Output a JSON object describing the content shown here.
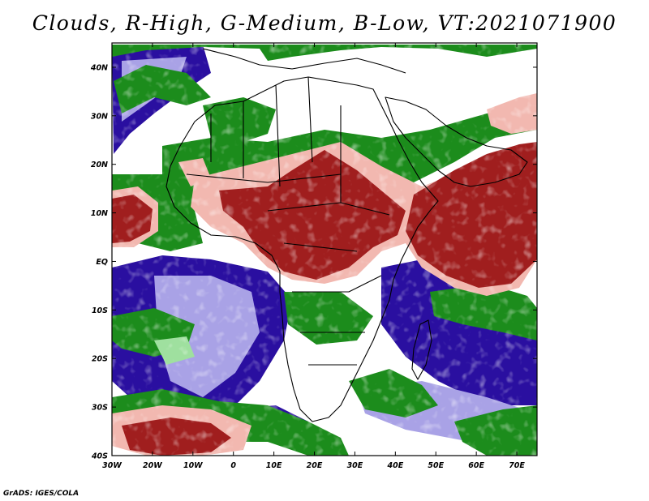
{
  "title": "Clouds, R-High, G-Medium, B-Low, VT:2021071900",
  "credit": "GrADS: IGES/COLA",
  "map": {
    "lon_range": [
      -30,
      75
    ],
    "lat_range": [
      -40,
      45
    ],
    "lon_ticks": [
      {
        "value": -30,
        "label": "30W"
      },
      {
        "value": -20,
        "label": "20W"
      },
      {
        "value": -10,
        "label": "10W"
      },
      {
        "value": 0,
        "label": "0"
      },
      {
        "value": 10,
        "label": "10E"
      },
      {
        "value": 20,
        "label": "20E"
      },
      {
        "value": 30,
        "label": "30E"
      },
      {
        "value": 40,
        "label": "40E"
      },
      {
        "value": 50,
        "label": "50E"
      },
      {
        "value": 60,
        "label": "60E"
      },
      {
        "value": 70,
        "label": "70E"
      }
    ],
    "lat_ticks": [
      {
        "value": 40,
        "label": "40N"
      },
      {
        "value": 30,
        "label": "30N"
      },
      {
        "value": 20,
        "label": "20N"
      },
      {
        "value": 10,
        "label": "10N"
      },
      {
        "value": 0,
        "label": "EQ"
      },
      {
        "value": -10,
        "label": "10S"
      },
      {
        "value": -20,
        "label": "20S"
      },
      {
        "value": -30,
        "label": "30S"
      },
      {
        "value": -40,
        "label": "40S"
      }
    ],
    "colors": {
      "high_cloud": "#a01e1e",
      "high_cloud_light": "#f2b8b0",
      "medium_cloud": "#1c8c1c",
      "medium_cloud_light": "#9fe09f",
      "low_cloud": "#2a0fa0",
      "low_cloud_light": "#a9a2e6",
      "clear": "#ffffff",
      "coastline": "#000000"
    }
  }
}
